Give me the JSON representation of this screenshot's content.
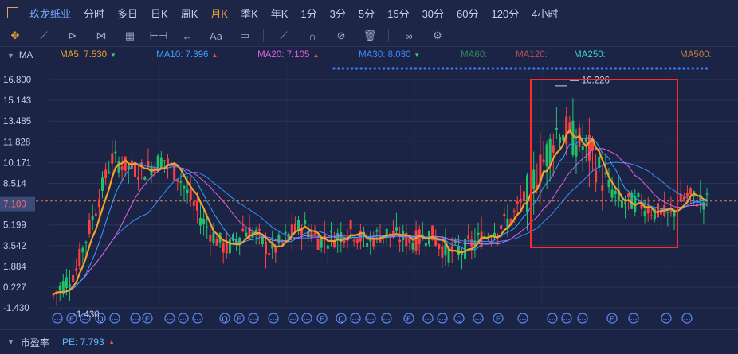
{
  "toolbar": {
    "stock_name": "玖龙纸业",
    "timeframes": [
      "分时",
      "多日",
      "日K",
      "周K",
      "月K",
      "季K",
      "年K",
      "1分",
      "3分",
      "5分",
      "15分",
      "30分",
      "60分",
      "120分",
      "4小时"
    ],
    "active_timeframe": "月K"
  },
  "ma_bar": {
    "label": "MA",
    "items": [
      {
        "text": "MA5: 7.530",
        "arrow": "▼",
        "color": "#f0a030",
        "arrow_color": "#2ecc71"
      },
      {
        "text": "MA10: 7.396",
        "arrow": "▲",
        "color": "#3aa0ff",
        "arrow_color": "#ff4d4d"
      },
      {
        "text": "MA20: 7.105",
        "arrow": "▲",
        "color": "#e060e0",
        "arrow_color": "#ff4d4d"
      },
      {
        "text": "MA30: 8.030",
        "arrow": "▼",
        "color": "#3a8cff",
        "arrow_color": "#2ecc71"
      },
      {
        "text": "MA60:",
        "arrow": "",
        "color": "#2e8a5a",
        "arrow_color": ""
      },
      {
        "text": "MA120:",
        "arrow": "",
        "color": "#b05060",
        "arrow_color": ""
      },
      {
        "text": "MA250:",
        "arrow": "",
        "color": "#40d0d0",
        "arrow_color": ""
      },
      {
        "text": "MA500:",
        "arrow": "",
        "color": "#c08040",
        "arrow_color": ""
      }
    ]
  },
  "axis": {
    "y_labels": [
      "16.800",
      "15.143",
      "13.485",
      "11.828",
      "10.171",
      "8.514",
      "7.100",
      "5.199",
      "3.542",
      "1.884",
      "0.227",
      "-1.430"
    ],
    "current_price": "7.100"
  },
  "annotations": {
    "high": "16.226",
    "low": "-1.430"
  },
  "colors": {
    "up": "#ff4040",
    "down": "#22c06a",
    "ma5": "#f0a030",
    "ma10": "#3aa0ff",
    "ma20": "#e060e0",
    "ma30": "#3a8cff",
    "highlight": "#ff2a2a"
  },
  "bottom_panel": {
    "label": "市盈率",
    "pe_text": "PE: 7.793",
    "pe_arrow": "▲"
  },
  "event_markers": [
    "E",
    "Q"
  ]
}
